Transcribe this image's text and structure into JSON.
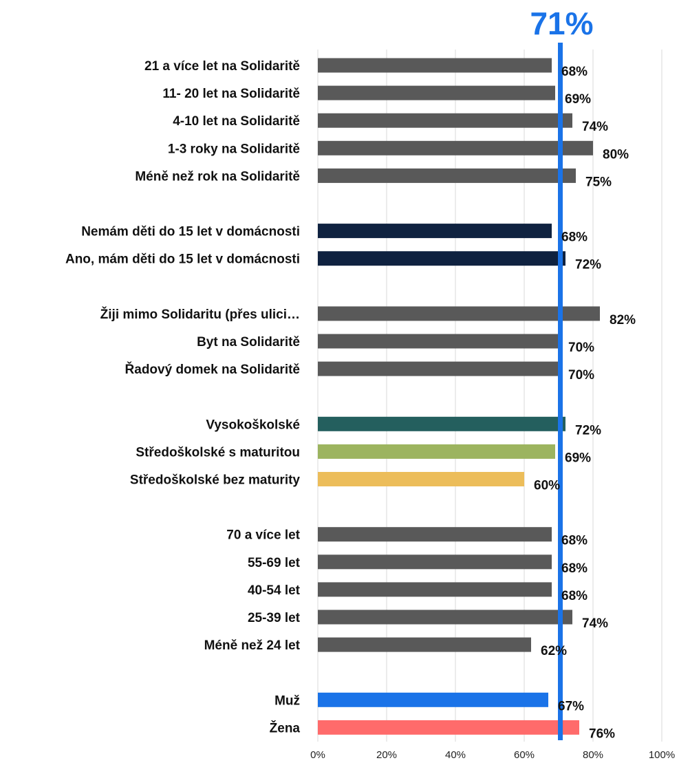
{
  "chart_data": {
    "type": "bar",
    "orientation": "horizontal",
    "x_axis": {
      "min": 0,
      "max": 100,
      "ticks": [
        0,
        20,
        40,
        60,
        80,
        100
      ],
      "tick_labels": [
        "0%",
        "20%",
        "40%",
        "60%",
        "80%",
        "100%"
      ],
      "grid": true
    },
    "reference_line": {
      "value": 71,
      "label": "71%",
      "color": "#1a73e8"
    },
    "rows": [
      {
        "label": "21 a více let na Solidaritě",
        "value": 68,
        "value_label": "68%",
        "color": "#595959"
      },
      {
        "label": "11- 20 let na Solidaritě",
        "value": 69,
        "value_label": "69%",
        "color": "#595959"
      },
      {
        "label": "4-10 let na Solidaritě",
        "value": 74,
        "value_label": "74%",
        "color": "#595959"
      },
      {
        "label": "1-3 roky na Solidaritě",
        "value": 80,
        "value_label": "80%",
        "color": "#595959"
      },
      {
        "label": "Méně než rok na Solidaritě",
        "value": 75,
        "value_label": "75%",
        "color": "#595959"
      },
      {
        "label": "",
        "value": null
      },
      {
        "label": "Nemám děti do 15 let v domácnosti",
        "value": 68,
        "value_label": "68%",
        "color": "#0f2240"
      },
      {
        "label": "Ano, mám děti do 15 let v domácnosti",
        "value": 72,
        "value_label": "72%",
        "color": "#0f2240"
      },
      {
        "label": "",
        "value": null
      },
      {
        "label": "Žiji mimo Solidaritu (přes ulici…",
        "value": 82,
        "value_label": "82%",
        "color": "#595959"
      },
      {
        "label": "Byt na Solidaritě",
        "value": 70,
        "value_label": "70%",
        "color": "#595959"
      },
      {
        "label": "Řadový domek na Solidaritě",
        "value": 70,
        "value_label": "70%",
        "color": "#595959"
      },
      {
        "label": "",
        "value": null
      },
      {
        "label": "Vysokoškolské",
        "value": 72,
        "value_label": "72%",
        "color": "#245f5e"
      },
      {
        "label": "Středoškolské s maturitou",
        "value": 69,
        "value_label": "69%",
        "color": "#9cb45f"
      },
      {
        "label": "Středoškolské bez maturity",
        "value": 60,
        "value_label": "60%",
        "color": "#ecbd5a"
      },
      {
        "label": "",
        "value": null
      },
      {
        "label": "70 a více let",
        "value": 68,
        "value_label": "68%",
        "color": "#595959"
      },
      {
        "label": "55-69 let",
        "value": 68,
        "value_label": "68%",
        "color": "#595959"
      },
      {
        "label": "40-54 let",
        "value": 68,
        "value_label": "68%",
        "color": "#595959"
      },
      {
        "label": "25-39 let",
        "value": 74,
        "value_label": "74%",
        "color": "#595959"
      },
      {
        "label": "Méně než 24 let",
        "value": 62,
        "value_label": "62%",
        "color": "#595959"
      },
      {
        "label": "",
        "value": null
      },
      {
        "label": "Muž",
        "value": 67,
        "value_label": "67%",
        "color": "#1a73e8"
      },
      {
        "label": "Žena",
        "value": 76,
        "value_label": "76%",
        "color": "#ff6b6b"
      }
    ]
  }
}
